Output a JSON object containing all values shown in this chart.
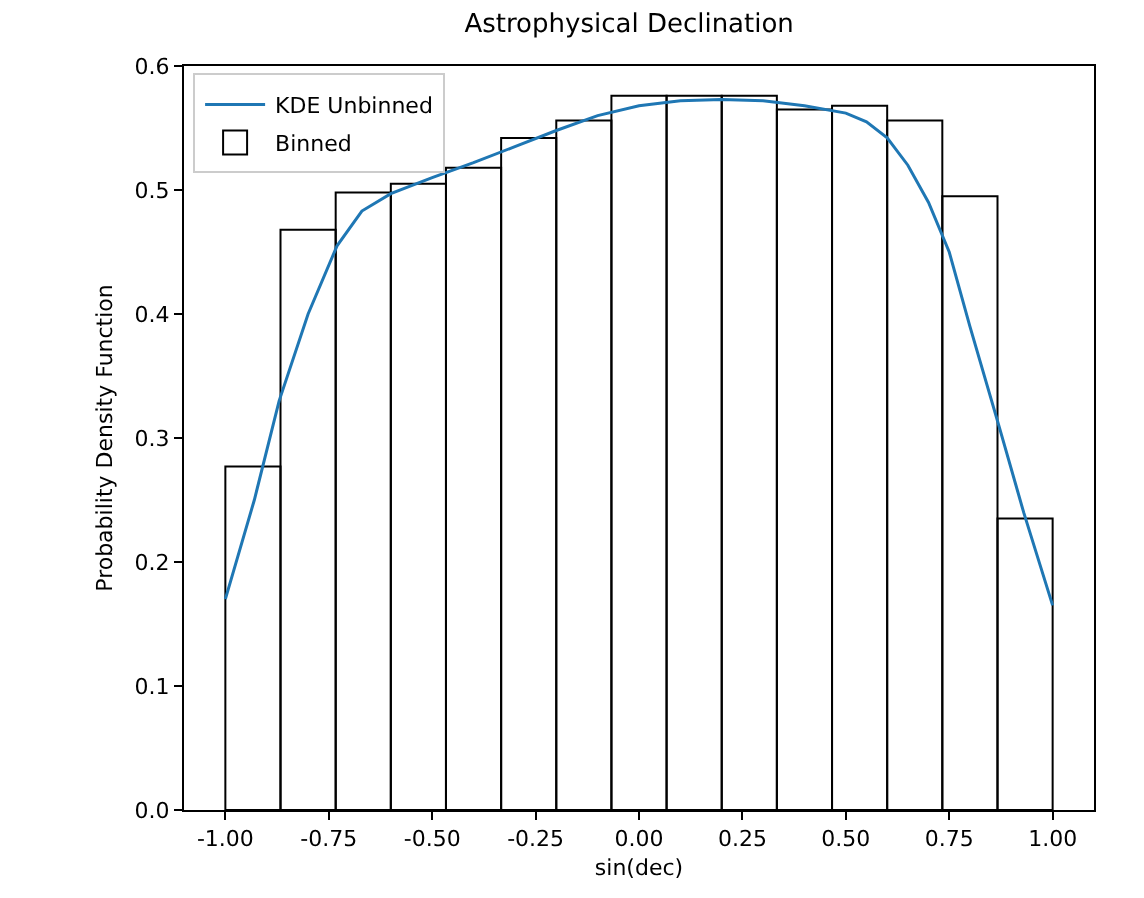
{
  "chart_data": {
    "type": "histogram",
    "title": "Astrophysical Declination",
    "xlabel": "sin(dec)",
    "ylabel": "Probability Density Function",
    "bins": [
      -1,
      -0.8667,
      -0.7333,
      -0.6,
      -0.4667,
      -0.3333,
      -0.2,
      -0.0667,
      0.0667,
      0.2,
      0.3333,
      0.4667,
      0.6,
      0.7333,
      0.8667,
      1
    ],
    "series": [
      {
        "name": "KDE Unbinned",
        "type": "line",
        "color": "#1f77b4",
        "x": [
          -1,
          -0.93,
          -0.87,
          -0.8,
          -0.73,
          -0.67,
          -0.6,
          -0.5,
          -0.4,
          -0.3,
          -0.2,
          -0.1,
          0,
          0.1,
          0.2,
          0.3,
          0.4,
          0.5,
          0.55,
          0.6,
          0.65,
          0.7,
          0.75,
          0.8,
          0.87,
          0.93,
          1
        ],
        "values": [
          0.17,
          0.25,
          0.33,
          0.4,
          0.455,
          0.483,
          0.497,
          0.51,
          0.522,
          0.535,
          0.548,
          0.56,
          0.568,
          0.572,
          0.573,
          0.572,
          0.568,
          0.562,
          0.555,
          0.542,
          0.52,
          0.49,
          0.45,
          0.39,
          0.31,
          0.24,
          0.165
        ]
      },
      {
        "name": "Binned",
        "color": "#000000",
        "values": [
          0.277,
          0.468,
          0.498,
          0.505,
          0.518,
          0.542,
          0.556,
          0.576,
          0.576,
          0.576,
          0.565,
          0.568,
          0.556,
          0.495,
          0.235
        ]
      }
    ],
    "xlim": [
      -1.1,
      1.1
    ],
    "ylim": [
      0,
      0.6
    ],
    "xticks": [
      {
        "value": -1,
        "label": "-1.00"
      },
      {
        "value": -0.75,
        "label": "-0.75"
      },
      {
        "value": -0.5,
        "label": "-0.50"
      },
      {
        "value": -0.25,
        "label": "-0.25"
      },
      {
        "value": 0,
        "label": "0.00"
      },
      {
        "value": 0.25,
        "label": "0.25"
      },
      {
        "value": 0.5,
        "label": "0.50"
      },
      {
        "value": 0.75,
        "label": "0.75"
      },
      {
        "value": 1,
        "label": "1.00"
      }
    ],
    "yticks": [
      {
        "value": 0,
        "label": "0.0"
      },
      {
        "value": 0.1,
        "label": "0.1"
      },
      {
        "value": 0.2,
        "label": "0.2"
      },
      {
        "value": 0.3,
        "label": "0.3"
      },
      {
        "value": 0.4,
        "label": "0.4"
      },
      {
        "value": 0.5,
        "label": "0.5"
      },
      {
        "value": 0.6,
        "label": "0.6"
      }
    ],
    "legend": "top left",
    "grid": false
  }
}
